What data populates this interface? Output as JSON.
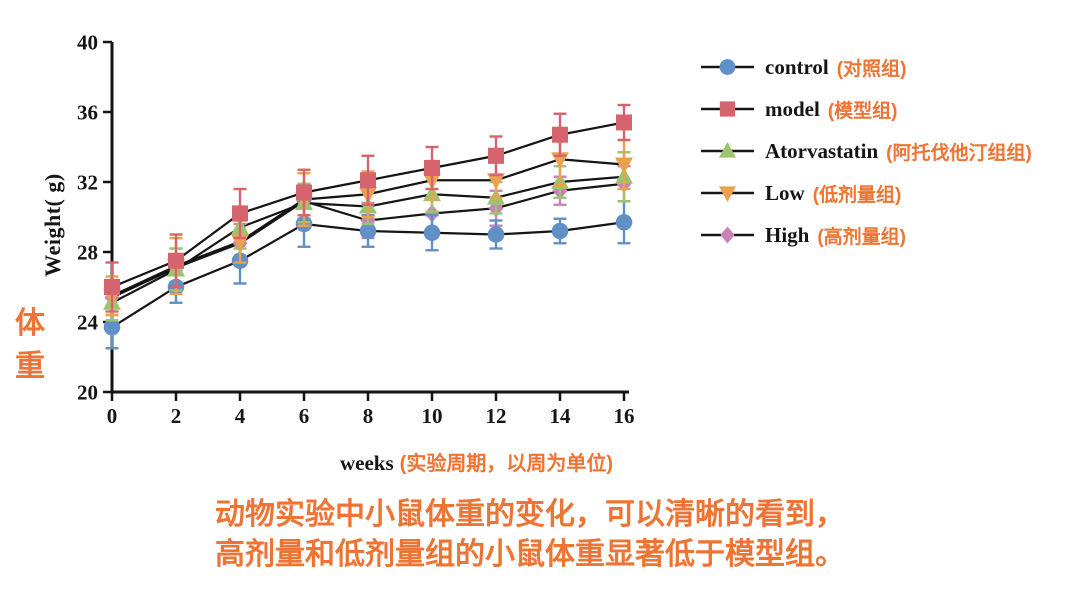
{
  "chart_data": {
    "type": "line",
    "x": [
      0,
      2,
      4,
      6,
      8,
      10,
      12,
      14,
      16
    ],
    "xlabel": "weeks",
    "xlabel_zh": "(实验周期，以周为单位)",
    "ylabel": "Weight( g)",
    "ylabel_zh": "体重",
    "xlim": [
      0,
      16
    ],
    "ylim": [
      20,
      40
    ],
    "yticks": [
      20,
      24,
      28,
      32,
      36,
      40
    ],
    "xticks": [
      0,
      2,
      4,
      6,
      8,
      10,
      12,
      14,
      16
    ],
    "grid": false,
    "legend_position": "right",
    "line_color": "#151515",
    "series": [
      {
        "name": "control",
        "zh": "(对照组)",
        "marker": "circle",
        "color": "#6190C6",
        "values": [
          23.7,
          26.0,
          27.5,
          29.6,
          29.2,
          29.1,
          29.0,
          29.2,
          29.7
        ],
        "errors": [
          1.2,
          0.9,
          1.3,
          1.3,
          0.9,
          1.0,
          0.8,
          0.7,
          1.2
        ]
      },
      {
        "name": "model",
        "zh": "(模型组)",
        "marker": "square",
        "color": "#D5646E",
        "values": [
          26.0,
          27.5,
          30.2,
          31.4,
          32.1,
          32.8,
          33.5,
          34.7,
          35.4
        ],
        "errors": [
          1.4,
          1.5,
          1.4,
          1.3,
          1.4,
          1.2,
          1.1,
          1.2,
          1.0
        ]
      },
      {
        "name": "Atorvastatin",
        "zh": "(阿托伐他汀组组)",
        "marker": "triangle-up",
        "color": "#9CC36F",
        "values": [
          25.1,
          27.0,
          29.4,
          30.8,
          30.6,
          31.3,
          31.1,
          32.0,
          32.3
        ],
        "errors": [
          1.0,
          1.2,
          1.2,
          1.1,
          1.0,
          1.0,
          0.9,
          0.9,
          1.4
        ]
      },
      {
        "name": "Low",
        "zh": "(低剂量组)",
        "marker": "triangle-down",
        "color": "#E9A250",
        "values": [
          25.5,
          27.2,
          28.6,
          31.0,
          31.3,
          32.1,
          32.1,
          33.3,
          33.0
        ],
        "errors": [
          1.1,
          1.6,
          1.2,
          1.5,
          1.3,
          1.1,
          1.0,
          1.5,
          1.4
        ]
      },
      {
        "name": "High",
        "zh": "(高剂量组)",
        "marker": "diamond",
        "color": "#CB81B4",
        "values": [
          25.4,
          27.1,
          28.5,
          30.9,
          29.8,
          30.2,
          30.5,
          31.5,
          31.9
        ],
        "errors": [
          1.0,
          1.1,
          1.1,
          1.0,
          1.0,
          0.9,
          1.0,
          0.8,
          1.0
        ]
      }
    ]
  },
  "caption": {
    "line1": "动物实验中小鼠体重的变化，可以清晰的看到，",
    "line2": "高剂量和低剂量组的小鼠体重显著低于模型组。"
  },
  "colors": {
    "accent_orange": "#ED7433",
    "axis_black": "#151515"
  }
}
